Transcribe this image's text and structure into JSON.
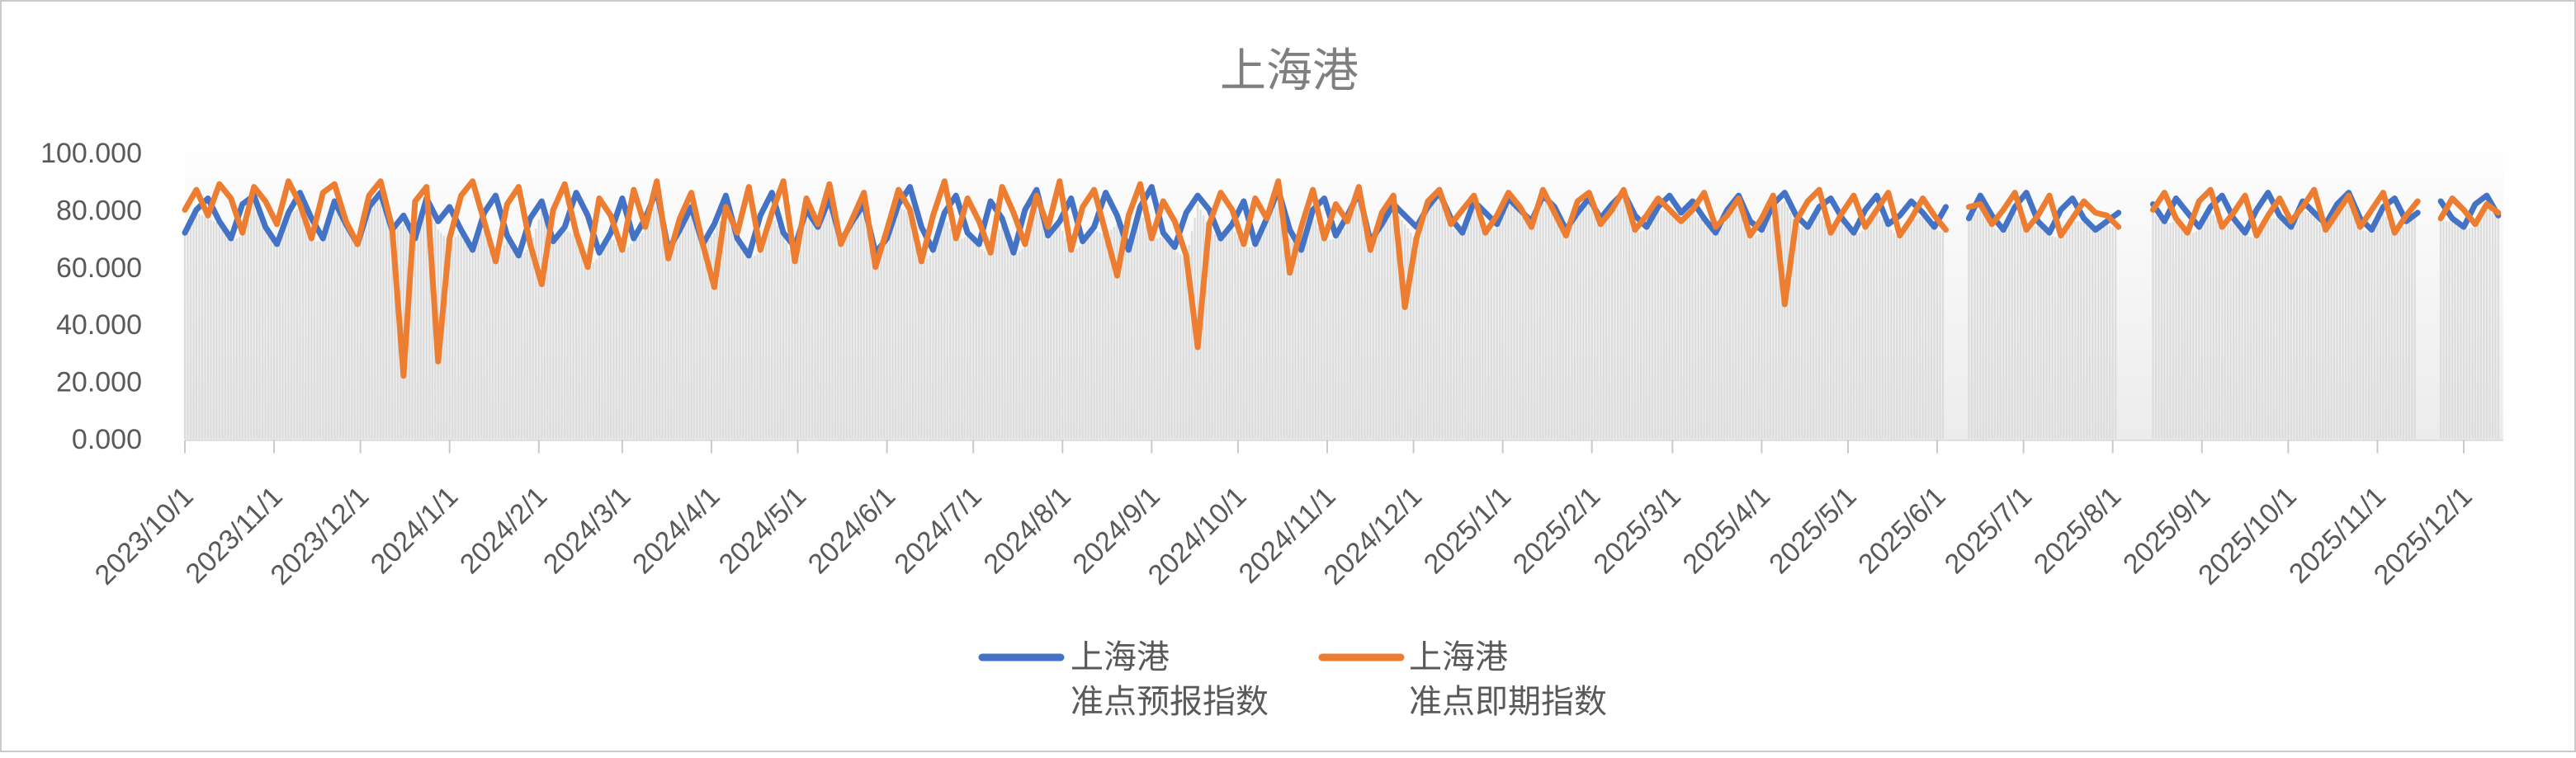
{
  "chart_data": {
    "type": "line",
    "title": "上海港",
    "ylabel": "",
    "xlabel": "",
    "ylim": [
      0,
      100
    ],
    "grid": false,
    "legend_position": "bottom-center",
    "x_label_rotation_deg": 45,
    "x_start_date": "2023/10/1",
    "x_sample_interval_days": 4,
    "x_tick_labels": [
      "2023/10/1",
      "2023/11/1",
      "2023/12/1",
      "2024/1/1",
      "2024/2/1",
      "2024/3/1",
      "2024/4/1",
      "2024/5/1",
      "2024/6/1",
      "2024/7/1",
      "2024/8/1",
      "2024/9/1",
      "2024/10/1",
      "2024/11/1",
      "2024/12/1",
      "2025/1/1",
      "2025/2/1",
      "2025/3/1",
      "2025/4/1",
      "2025/5/1",
      "2025/6/1",
      "2025/7/1",
      "2025/8/1",
      "2025/9/1",
      "2025/10/1",
      "2025/11/1",
      "2025/12/1"
    ],
    "y_tick_labels": [
      "0.000",
      "20.000",
      "40.000",
      "60.000",
      "80.000",
      "100.000"
    ],
    "y_tick_values": [
      0,
      20,
      40,
      60,
      80,
      100
    ],
    "axis_text_color": "#595959",
    "title_color": "#7f7f7f",
    "background_columns": {
      "description": "light-gray daily columns under the lines",
      "color": "#dcdcdc"
    },
    "data_gaps": [
      "2025/6/6-2025/6/11",
      "2025/8/6-2025/8/13",
      "2025/11/17-2025/11/18"
    ],
    "series": [
      {
        "name": "上海港 准点预报指数",
        "legend_line1": "上海港",
        "legend_line2": "准点预报指数",
        "color": "#4472C4",
        "values": [
          72,
          80,
          84,
          76,
          70,
          82,
          85,
          74,
          68,
          79,
          86,
          77,
          70,
          83,
          75,
          68,
          81,
          86,
          73,
          78,
          70,
          84,
          76,
          81,
          73,
          66,
          79,
          85,
          71,
          64,
          77,
          83,
          69,
          74,
          86,
          78,
          65,
          72,
          84,
          70,
          77,
          87,
          66,
          73,
          81,
          68,
          75,
          85,
          70,
          64,
          78,
          86,
          72,
          67,
          80,
          74,
          84,
          69,
          76,
          82,
          65,
          70,
          82,
          88,
          74,
          66,
          79,
          85,
          72,
          68,
          83,
          77,
          65,
          80,
          87,
          71,
          76,
          84,
          69,
          74,
          86,
          78,
          66,
          81,
          88,
          72,
          67,
          79,
          85,
          80,
          70,
          75,
          83,
          68,
          77,
          87,
          73,
          66,
          80,
          84,
          71,
          78,
          86,
          69,
          75,
          82,
          78,
          74,
          81,
          86,
          77,
          72,
          83,
          79,
          75,
          84,
          80,
          76,
          85,
          81,
          73,
          79,
          84,
          77,
          82,
          86,
          78,
          74,
          81,
          85,
          79,
          83,
          77,
          72,
          80,
          85,
          76,
          73,
          82,
          86,
          78,
          74,
          81,
          84,
          77,
          72,
          80,
          85,
          75,
          78,
          83,
          79,
          74,
          81,
          null,
          77,
          85,
          78,
          73,
          81,
          86,
          76,
          72,
          80,
          84,
          77,
          73,
          76,
          79,
          null,
          null,
          82,
          76,
          84,
          79,
          74,
          81,
          85,
          77,
          72,
          80,
          86,
          78,
          74,
          83,
          79,
          75,
          82,
          86,
          77,
          73,
          81,
          84,
          76,
          79,
          null,
          83,
          77,
          74,
          82,
          85,
          78
        ]
      },
      {
        "name": "上海港 准点即期指数",
        "legend_line1": "上海港",
        "legend_line2": "准点即期指数",
        "color": "#ED7D31",
        "values": [
          80,
          87,
          78,
          89,
          84,
          72,
          88,
          83,
          75,
          90,
          82,
          70,
          86,
          89,
          76,
          68,
          85,
          90,
          74,
          22,
          83,
          88,
          27,
          70,
          85,
          90,
          76,
          62,
          82,
          88,
          68,
          54,
          80,
          89,
          72,
          60,
          84,
          78,
          66,
          87,
          74,
          90,
          63,
          77,
          86,
          68,
          53,
          81,
          72,
          88,
          66,
          79,
          90,
          62,
          84,
          75,
          89,
          68,
          77,
          86,
          60,
          73,
          87,
          80,
          62,
          78,
          90,
          70,
          84,
          76,
          65,
          88,
          79,
          68,
          85,
          74,
          90,
          66,
          81,
          87,
          72,
          57,
          78,
          89,
          70,
          83,
          76,
          64,
          32,
          75,
          86,
          80,
          68,
          84,
          77,
          90,
          58,
          74,
          87,
          70,
          82,
          76,
          88,
          66,
          79,
          85,
          46,
          70,
          83,
          87,
          75,
          80,
          85,
          72,
          78,
          86,
          81,
          74,
          87,
          79,
          71,
          83,
          86,
          75,
          80,
          87,
          73,
          78,
          84,
          80,
          76,
          80,
          86,
          74,
          78,
          84,
          71,
          77,
          85,
          47,
          76,
          83,
          87,
          72,
          79,
          85,
          74,
          80,
          86,
          71,
          77,
          84,
          78,
          73,
          null,
          81,
          82,
          75,
          80,
          86,
          73,
          78,
          85,
          71,
          77,
          83,
          79,
          78,
          74,
          null,
          null,
          80,
          86,
          77,
          72,
          83,
          87,
          74,
          79,
          85,
          71,
          78,
          84,
          76,
          81,
          87,
          73,
          79,
          85,
          74,
          80,
          86,
          72,
          78,
          83,
          null,
          77,
          84,
          80,
          75,
          82,
          79
        ]
      }
    ]
  }
}
